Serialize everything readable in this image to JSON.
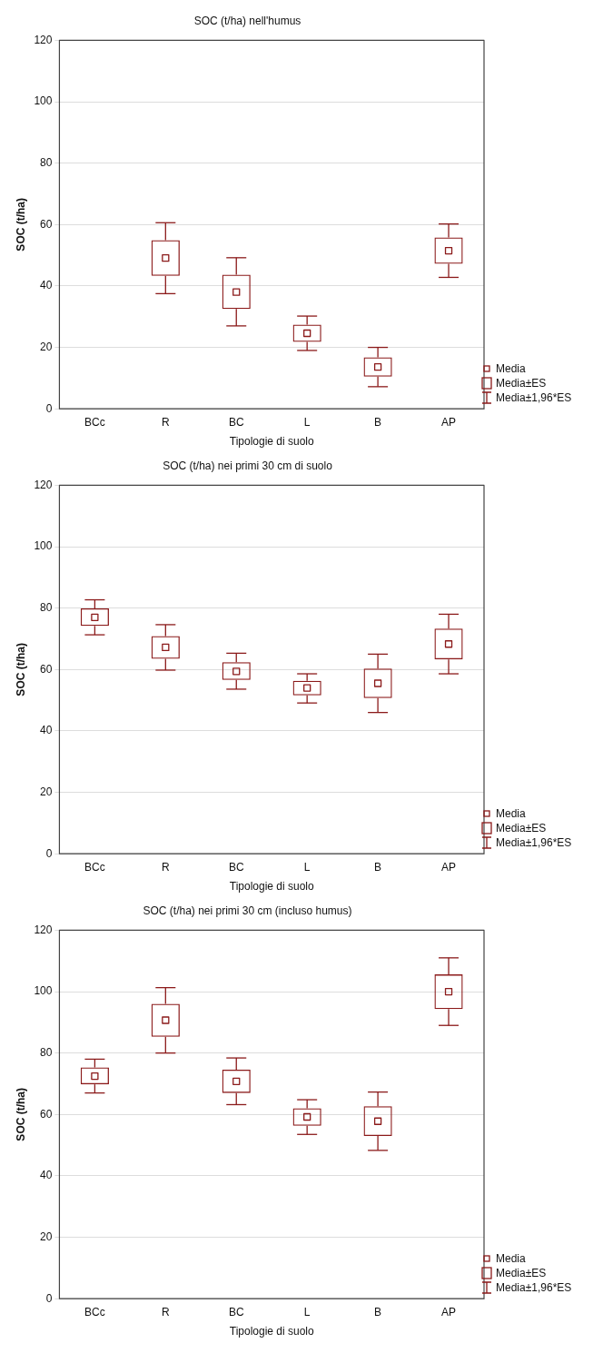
{
  "chart_data": [
    {
      "type": "box",
      "title": "SOC (t/ha) nell'humus",
      "xlabel": "Tipologie di suolo",
      "ylabel": "SOC (t/ha)",
      "categories": [
        "BCc",
        "R",
        "BC",
        "L",
        "B",
        "AP"
      ],
      "color": "#8b1a1a",
      "ylim": [
        0,
        120
      ],
      "yticks": [
        0,
        20,
        40,
        60,
        80,
        100,
        120
      ],
      "grid": "y",
      "annotations": [
        "Media",
        "Media±ES",
        "Media±1,96*ES"
      ],
      "boxes": [
        null,
        {
          "low": 37.5,
          "q1": 43.3,
          "median": 49.1,
          "q3": 54.9,
          "high": 60.6
        },
        {
          "low": 27,
          "q1": 32.5,
          "median": 38,
          "q3": 43.7,
          "high": 49.2
        },
        {
          "low": 19,
          "q1": 21.8,
          "median": 24.6,
          "q3": 27.4,
          "high": 30.2
        },
        {
          "low": 7.2,
          "q1": 10.5,
          "median": 13.6,
          "q3": 16.8,
          "high": 20
        },
        {
          "low": 42.8,
          "q1": 47.2,
          "median": 51.5,
          "q3": 55.8,
          "high": 60.2
        }
      ]
    },
    {
      "type": "box",
      "title": "SOC (t/ha) nei primi 30 cm di suolo",
      "xlabel": "Tipologie di suolo",
      "ylabel": "SOC (t/ha)",
      "categories": [
        "BCc",
        "R",
        "BC",
        "L",
        "B",
        "AP"
      ],
      "color": "#8b1a1a",
      "ylim": [
        0,
        120
      ],
      "yticks": [
        0,
        20,
        40,
        60,
        80,
        100,
        120
      ],
      "grid": "y",
      "annotations": [
        "Media",
        "Media±ES",
        "Media±1,96*ES"
      ],
      "boxes": [
        {
          "low": 71.3,
          "q1": 74.2,
          "median": 77,
          "q3": 79.9,
          "high": 82.7
        },
        {
          "low": 59.8,
          "q1": 63.5,
          "median": 67.2,
          "q3": 70.9,
          "high": 74.6
        },
        {
          "low": 53.6,
          "q1": 56.6,
          "median": 59.4,
          "q3": 62.4,
          "high": 65.3
        },
        {
          "low": 49.1,
          "q1": 51.6,
          "median": 54,
          "q3": 56.3,
          "high": 58.6
        },
        {
          "low": 46,
          "q1": 50.7,
          "median": 55.5,
          "q3": 60.3,
          "high": 65
        },
        {
          "low": 58.6,
          "q1": 63.3,
          "median": 68.3,
          "q3": 73.3,
          "high": 78
        }
      ]
    },
    {
      "type": "box",
      "title": "SOC (t/ha) nei primi 30 cm (incluso humus)",
      "xlabel": "Tipologie di suolo",
      "ylabel": "SOC (t/ha)",
      "categories": [
        "BCc",
        "R",
        "BC",
        "L",
        "B",
        "AP"
      ],
      "color": "#8b1a1a",
      "ylim": [
        0,
        120
      ],
      "yticks": [
        0,
        20,
        40,
        60,
        80,
        100,
        120
      ],
      "grid": "y",
      "annotations": [
        "Media",
        "Media±ES",
        "Media±1,96*ES"
      ],
      "boxes": [
        {
          "low": 67,
          "q1": 69.8,
          "median": 72.5,
          "q3": 75.3,
          "high": 78
        },
        {
          "low": 80,
          "q1": 85.3,
          "median": 90.7,
          "q3": 96,
          "high": 101.3
        },
        {
          "low": 63.2,
          "q1": 67,
          "median": 70.8,
          "q3": 74.6,
          "high": 78.4
        },
        {
          "low": 53.5,
          "q1": 56.3,
          "median": 59.2,
          "q3": 62,
          "high": 64.8
        },
        {
          "low": 48.3,
          "q1": 53,
          "median": 57.8,
          "q3": 62.7,
          "high": 67.3
        },
        {
          "low": 89,
          "q1": 94.3,
          "median": 100,
          "q3": 105.6,
          "high": 111
        }
      ]
    }
  ]
}
